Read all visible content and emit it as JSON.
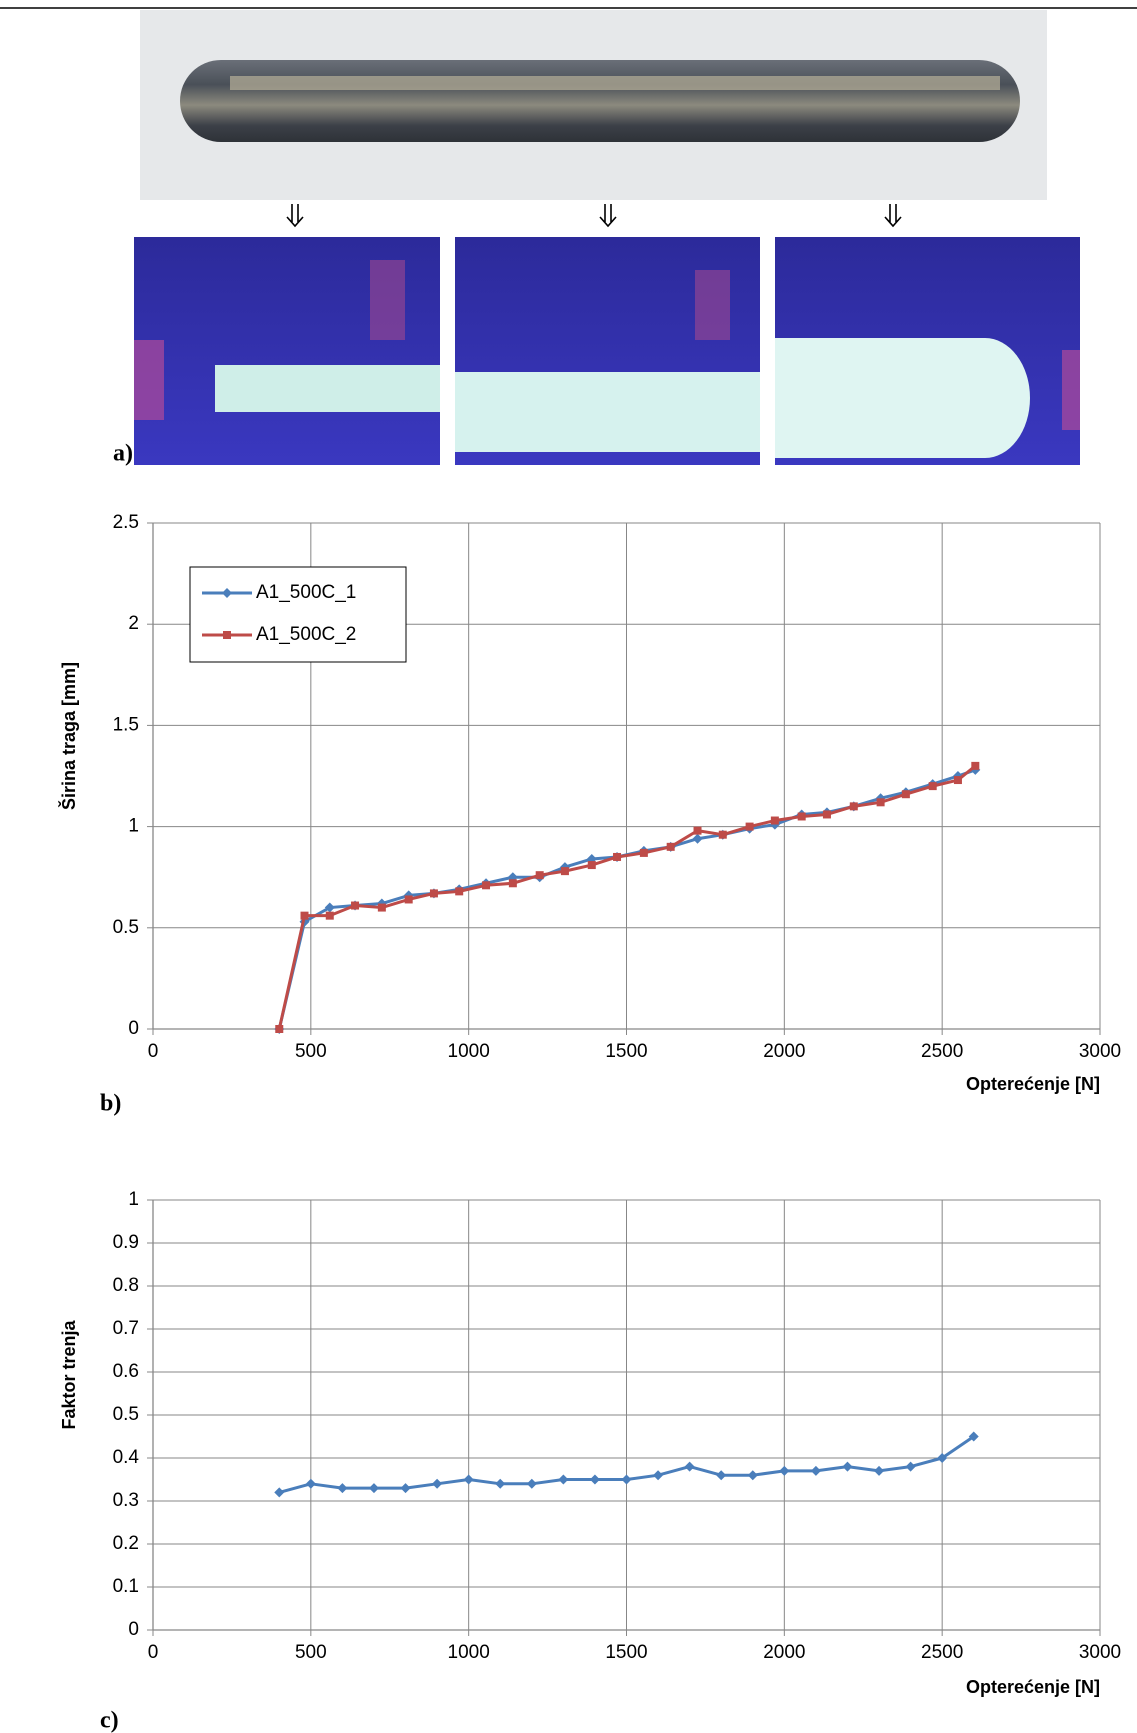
{
  "panel_labels": [
    "a)",
    "b)",
    "c)"
  ],
  "chart_data": [
    {
      "type": "line",
      "y_label": "Širina traga [mm]",
      "x_label": "Opterećenje [N]",
      "x": [
        400,
        480,
        560,
        640,
        725,
        810,
        890,
        970,
        1055,
        1140,
        1225,
        1305,
        1390,
        1470,
        1555,
        1640,
        1725,
        1805,
        1890,
        1970,
        2055,
        2135,
        2220,
        2305,
        2385,
        2470,
        2550,
        2605
      ],
      "series": [
        {
          "name": "A1_500C_1",
          "color": "#4a7ebb",
          "marker": "diamond",
          "values": [
            0,
            0.53,
            0.6,
            0.61,
            0.62,
            0.66,
            0.67,
            0.69,
            0.72,
            0.75,
            0.75,
            0.8,
            0.84,
            0.85,
            0.88,
            0.9,
            0.94,
            0.96,
            0.99,
            1.01,
            1.06,
            1.07,
            1.1,
            1.14,
            1.17,
            1.21,
            1.25,
            1.28
          ]
        },
        {
          "name": "A1_500C_2",
          "color": "#be4b48",
          "marker": "square",
          "values": [
            0,
            0.56,
            0.56,
            0.61,
            0.6,
            0.64,
            0.67,
            0.68,
            0.71,
            0.72,
            0.76,
            0.78,
            0.81,
            0.85,
            0.87,
            0.9,
            0.98,
            0.96,
            1.0,
            1.03,
            1.05,
            1.06,
            1.1,
            1.12,
            1.16,
            1.2,
            1.23,
            1.3
          ]
        }
      ],
      "xlim": [
        0,
        3000
      ],
      "xticks": [
        0,
        500,
        1000,
        1500,
        2000,
        2500,
        3000
      ],
      "ylim": [
        0,
        2.5
      ],
      "yticks": [
        0,
        0.5,
        1,
        1.5,
        2,
        2.5
      ],
      "grid": true,
      "legend": "upper left"
    },
    {
      "type": "line",
      "y_label": "Faktor trenja",
      "x_label": "Opterećenje [N]",
      "x": [
        400,
        500,
        600,
        700,
        800,
        900,
        1000,
        1100,
        1200,
        1300,
        1400,
        1500,
        1600,
        1700,
        1800,
        1900,
        2000,
        2100,
        2200,
        2300,
        2400,
        2500,
        2600
      ],
      "values": [
        0.32,
        0.34,
        0.33,
        0.33,
        0.33,
        0.34,
        0.35,
        0.34,
        0.34,
        0.35,
        0.35,
        0.35,
        0.36,
        0.38,
        0.36,
        0.36,
        0.37,
        0.37,
        0.38,
        0.37,
        0.38,
        0.4,
        0.45
      ],
      "color": "#4a7ebb",
      "marker": "diamond",
      "xlim": [
        0,
        3000
      ],
      "xticks": [
        0,
        500,
        1000,
        1500,
        2000,
        2500,
        3000
      ],
      "ylim": [
        0,
        1
      ],
      "yticks": [
        0,
        0.1,
        0.2,
        0.3,
        0.4,
        0.5,
        0.6,
        0.7,
        0.8,
        0.9,
        1
      ],
      "grid": true
    }
  ]
}
